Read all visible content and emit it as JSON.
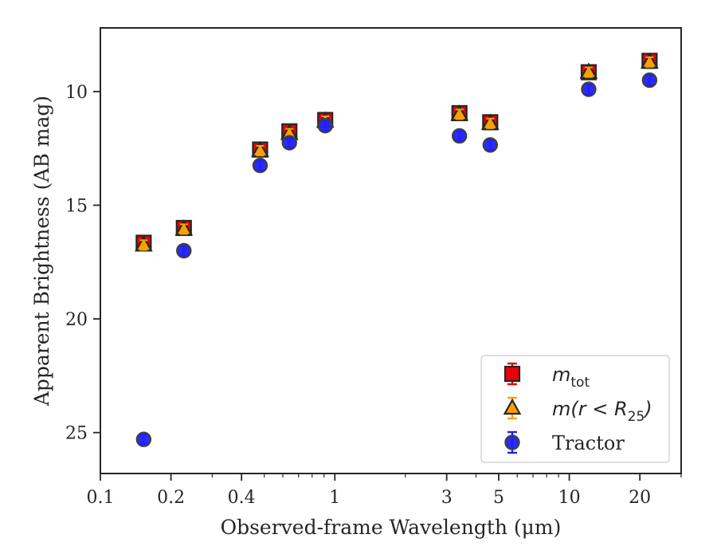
{
  "chart_data": {
    "type": "scatter",
    "xlabel": "Observed-frame Wavelength (μm)",
    "ylabel": "Apparent Brightness (AB mag)",
    "xscale": "log",
    "xlim": [
      0.1,
      30
    ],
    "ylim": [
      26.8,
      7.2
    ],
    "y_inverted": true,
    "xticks": [
      {
        "value": 0.1,
        "label": "0.1"
      },
      {
        "value": 0.2,
        "label": "0.2"
      },
      {
        "value": 0.4,
        "label": "0.4"
      },
      {
        "value": 1,
        "label": "1"
      },
      {
        "value": 3,
        "label": "3"
      },
      {
        "value": 5,
        "label": "5"
      },
      {
        "value": 10,
        "label": "10"
      },
      {
        "value": 20,
        "label": "20"
      }
    ],
    "yticks": [
      {
        "value": 10,
        "label": "10"
      },
      {
        "value": 15,
        "label": "15"
      },
      {
        "value": 20,
        "label": "20"
      },
      {
        "value": 25,
        "label": "25"
      }
    ],
    "legend_position": "lower-right",
    "series": [
      {
        "name": "m_tot",
        "legend_main": "m",
        "legend_sub": "tot",
        "marker": "square",
        "color": "#e8000b",
        "ecolor": "#e8000b",
        "x": [
          0.153,
          0.227,
          0.48,
          0.64,
          0.91,
          3.4,
          4.6,
          12.1,
          22.0
        ],
        "y": [
          16.65,
          16.0,
          12.55,
          11.75,
          11.25,
          10.95,
          11.35,
          9.15,
          8.65
        ]
      },
      {
        "name": "m(r<R_25)",
        "legend_main": "m(r < R",
        "legend_sub": "25",
        "legend_tail": ")",
        "marker": "triangle",
        "color": "#ff9f00",
        "ecolor": "#f0a400",
        "x": [
          0.153,
          0.227,
          0.48,
          0.64,
          0.91,
          3.4,
          4.6,
          12.1,
          22.0
        ],
        "y": [
          16.75,
          16.05,
          12.6,
          11.85,
          11.3,
          11.0,
          11.4,
          9.15,
          8.7
        ]
      },
      {
        "name": "Tractor",
        "marker": "circle",
        "color": "#1f1fff",
        "ecolor": "#1f1fff",
        "x": [
          0.153,
          0.227,
          0.48,
          0.64,
          0.91,
          3.4,
          4.6,
          12.1,
          22.0
        ],
        "y": [
          25.3,
          17.0,
          13.25,
          12.25,
          11.5,
          11.95,
          12.35,
          9.9,
          9.5
        ]
      }
    ]
  }
}
